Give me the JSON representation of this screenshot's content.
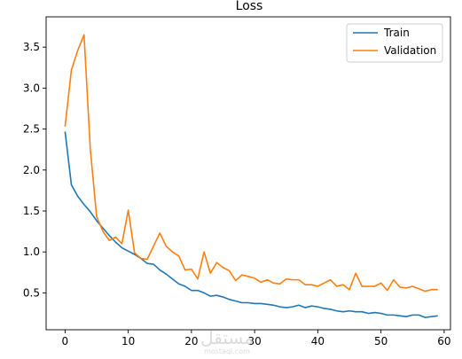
{
  "chart_data": {
    "type": "line",
    "title": "Loss",
    "xlabel": "",
    "ylabel": "",
    "xlim": [
      -3,
      61
    ],
    "ylim": [
      0.05,
      3.87
    ],
    "xticks": [
      0,
      10,
      20,
      30,
      40,
      50,
      60
    ],
    "yticks": [
      0.5,
      1.0,
      1.5,
      2.0,
      2.5,
      3.0,
      3.5
    ],
    "xtick_labels": [
      "0",
      "10",
      "20",
      "30",
      "40",
      "50",
      "60"
    ],
    "ytick_labels": [
      "0.5",
      "1.0",
      "1.5",
      "2.0",
      "2.5",
      "3.0",
      "3.5"
    ],
    "grid": false,
    "legend_position": "top-right",
    "x": [
      0,
      1,
      2,
      3,
      4,
      5,
      6,
      7,
      8,
      9,
      10,
      11,
      12,
      13,
      14,
      15,
      16,
      17,
      18,
      19,
      20,
      21,
      22,
      23,
      24,
      25,
      26,
      27,
      28,
      29,
      30,
      31,
      32,
      33,
      34,
      35,
      36,
      37,
      38,
      39,
      40,
      41,
      42,
      43,
      44,
      45,
      46,
      47,
      48,
      49,
      50,
      51,
      52,
      53,
      54,
      55,
      56,
      57,
      58,
      59
    ],
    "series": [
      {
        "name": "Train",
        "color": "#1f77b4",
        "values": [
          2.47,
          1.82,
          1.68,
          1.58,
          1.49,
          1.38,
          1.29,
          1.2,
          1.12,
          1.05,
          1.01,
          0.97,
          0.92,
          0.86,
          0.85,
          0.78,
          0.73,
          0.67,
          0.61,
          0.58,
          0.53,
          0.53,
          0.5,
          0.46,
          0.47,
          0.45,
          0.42,
          0.4,
          0.38,
          0.38,
          0.37,
          0.37,
          0.36,
          0.35,
          0.33,
          0.32,
          0.33,
          0.35,
          0.32,
          0.34,
          0.33,
          0.31,
          0.3,
          0.28,
          0.27,
          0.28,
          0.27,
          0.27,
          0.25,
          0.26,
          0.25,
          0.23,
          0.23,
          0.22,
          0.21,
          0.23,
          0.23,
          0.2,
          0.21,
          0.22
        ]
      },
      {
        "name": "Validation",
        "color": "#ff7f0e",
        "values": [
          2.53,
          3.22,
          3.46,
          3.65,
          2.25,
          1.43,
          1.25,
          1.14,
          1.18,
          1.1,
          1.51,
          0.99,
          0.92,
          0.91,
          1.07,
          1.23,
          1.07,
          1.0,
          0.95,
          0.78,
          0.79,
          0.67,
          1.0,
          0.74,
          0.87,
          0.81,
          0.77,
          0.65,
          0.72,
          0.7,
          0.68,
          0.63,
          0.66,
          0.62,
          0.61,
          0.67,
          0.66,
          0.66,
          0.6,
          0.6,
          0.58,
          0.62,
          0.66,
          0.58,
          0.6,
          0.54,
          0.74,
          0.58,
          0.58,
          0.58,
          0.62,
          0.53,
          0.66,
          0.57,
          0.56,
          0.58,
          0.55,
          0.52,
          0.54,
          0.54
        ]
      }
    ]
  },
  "watermark": {
    "text_ar": "مستقل",
    "text_en": "mostaql.com"
  }
}
